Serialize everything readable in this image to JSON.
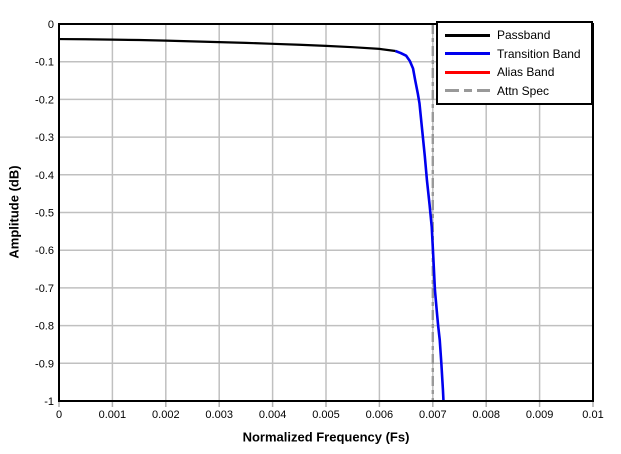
{
  "colors": {
    "background": "#ffffff",
    "grid": "#c0c0c0",
    "tick": "#b0b0b0",
    "axis_frame": "#000000",
    "text": "#000000"
  },
  "legend": {
    "position": "top-right",
    "border_color": "#000000"
  },
  "chart_data": {
    "type": "line",
    "title": "",
    "xlabel": "Normalized Frequency (Fs)",
    "ylabel": "Amplitude (dB)",
    "xlim": [
      0,
      0.01
    ],
    "ylim": [
      -1,
      0
    ],
    "grid": true,
    "x_ticks": [
      {
        "v": 0,
        "label": "0"
      },
      {
        "v": 0.001,
        "label": "0.001"
      },
      {
        "v": 0.002,
        "label": "0.002"
      },
      {
        "v": 0.003,
        "label": "0.003"
      },
      {
        "v": 0.004,
        "label": "0.004"
      },
      {
        "v": 0.005,
        "label": "0.005"
      },
      {
        "v": 0.006,
        "label": "0.006"
      },
      {
        "v": 0.007,
        "label": "0.007"
      },
      {
        "v": 0.008,
        "label": "0.008"
      },
      {
        "v": 0.009,
        "label": "0.009"
      },
      {
        "v": 0.01,
        "label": "0.01"
      }
    ],
    "y_ticks": [
      {
        "v": 0,
        "label": "0"
      },
      {
        "v": -0.1,
        "label": "-0.1"
      },
      {
        "v": -0.2,
        "label": "-0.2"
      },
      {
        "v": -0.3,
        "label": "-0.3"
      },
      {
        "v": -0.4,
        "label": "-0.4"
      },
      {
        "v": -0.5,
        "label": "-0.5"
      },
      {
        "v": -0.6,
        "label": "-0.6"
      },
      {
        "v": -0.7,
        "label": "-0.7"
      },
      {
        "v": -0.8,
        "label": "-0.8"
      },
      {
        "v": -0.9,
        "label": "-0.9"
      },
      {
        "v": -1,
        "label": "-1"
      }
    ],
    "series": [
      {
        "name": "Passband",
        "color": "#000000",
        "style": "solid",
        "width": 2.2,
        "points": [
          [
            0,
            -0.04
          ],
          [
            0.0005,
            -0.0405
          ],
          [
            0.001,
            -0.0415
          ],
          [
            0.0015,
            -0.0425
          ],
          [
            0.002,
            -0.044
          ],
          [
            0.0025,
            -0.046
          ],
          [
            0.003,
            -0.048
          ],
          [
            0.0035,
            -0.05
          ],
          [
            0.004,
            -0.0525
          ],
          [
            0.0045,
            -0.055
          ],
          [
            0.005,
            -0.058
          ],
          [
            0.0055,
            -0.0615
          ],
          [
            0.006,
            -0.066
          ],
          [
            0.0063,
            -0.0716
          ]
        ]
      },
      {
        "name": "Transition Band",
        "color": "#0000ee",
        "style": "solid",
        "width": 2.6,
        "points": [
          [
            0.0063,
            -0.0716
          ],
          [
            0.0064,
            -0.077
          ],
          [
            0.0065,
            -0.084
          ],
          [
            0.00657,
            -0.098
          ],
          [
            0.00663,
            -0.118
          ],
          [
            0.00667,
            -0.149
          ],
          [
            0.00672,
            -0.185
          ],
          [
            0.00675,
            -0.21
          ],
          [
            0.0068,
            -0.28
          ],
          [
            0.00685,
            -0.35
          ],
          [
            0.00689,
            -0.414
          ],
          [
            0.00694,
            -0.48
          ],
          [
            0.00698,
            -0.538
          ],
          [
            0.00701,
            -0.62
          ],
          [
            0.00704,
            -0.706
          ],
          [
            0.00708,
            -0.77
          ],
          [
            0.0071,
            -0.8
          ],
          [
            0.00713,
            -0.838
          ],
          [
            0.00716,
            -0.9
          ],
          [
            0.00719,
            -0.971
          ],
          [
            0.0072,
            -1.0
          ]
        ]
      },
      {
        "name": "Alias Band",
        "color": "#ff0000",
        "style": "solid",
        "width": 2.2,
        "points": []
      },
      {
        "name": "Attn Spec",
        "color": "#999999",
        "style": "dash-dot",
        "width": 2.4,
        "points": [
          [
            0.007,
            0
          ],
          [
            0.007,
            -1
          ]
        ]
      }
    ]
  }
}
